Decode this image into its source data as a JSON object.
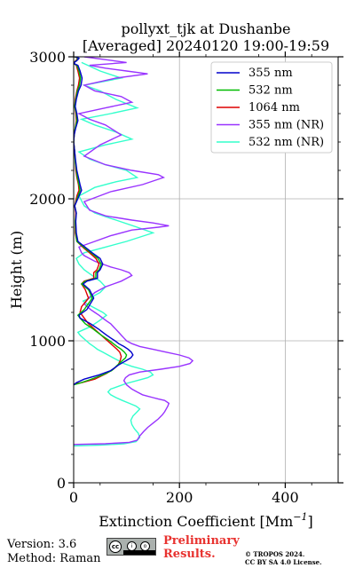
{
  "chart_data": {
    "type": "line",
    "title": [
      "pollyxt_tjk at Dushanbe",
      "[Averaged] 20240120 19:00-19:59"
    ],
    "xlabel": "Extinction Coefficient [Mm",
    "xlabel_sup": "−1",
    "xlabel_close": "]",
    "ylabel": "Height (m)",
    "xlim": [
      0,
      500
    ],
    "ylim": [
      0,
      3000
    ],
    "xticks": [
      0,
      200,
      400
    ],
    "yticks": [
      0,
      1000,
      2000,
      3000
    ],
    "grid": true,
    "legend_position": "top-right",
    "series": [
      {
        "name": "355 nm",
        "color": "#0000cc",
        "x": [
          0,
          5,
          20,
          48,
          70,
          85,
          99,
          108,
          112,
          109,
          103,
          95,
          85,
          78,
          70,
          62,
          55,
          48,
          40,
          32,
          22,
          12,
          10,
          25,
          38,
          30,
          18,
          25,
          45,
          45,
          50,
          55,
          50,
          35,
          25,
          8,
          5,
          4,
          5,
          2,
          10,
          15,
          12,
          9,
          6,
          4,
          2,
          0,
          1,
          4,
          8,
          6,
          3,
          5,
          9,
          14,
          16,
          12,
          8,
          2,
          1,
          5,
          8,
          10,
          4,
          2
        ],
        "y": [
          690,
          705,
          730,
          760,
          790,
          830,
          860,
          880,
          900,
          920,
          940,
          960,
          980,
          1000,
          1020,
          1040,
          1060,
          1080,
          1100,
          1120,
          1140,
          1160,
          1180,
          1220,
          1300,
          1360,
          1400,
          1420,
          1440,
          1480,
          1500,
          1540,
          1580,
          1620,
          1650,
          1700,
          1760,
          1840,
          1900,
          1950,
          2020,
          2060,
          2100,
          2150,
          2200,
          2260,
          2330,
          2400,
          2450,
          2500,
          2550,
          2600,
          2650,
          2700,
          2760,
          2800,
          2850,
          2900,
          2940,
          2950,
          2960,
          2970,
          2980,
          2990,
          3000,
          3000
        ]
      },
      {
        "name": "532 nm",
        "color": "#00bb00",
        "x": [
          0,
          10,
          30,
          55,
          72,
          83,
          92,
          98,
          100,
          96,
          90,
          82,
          75,
          68,
          60,
          52,
          45,
          38,
          30,
          22,
          12,
          8,
          20,
          35,
          28,
          15,
          22,
          42,
          42,
          48,
          52,
          46,
          33,
          22,
          6,
          4,
          3,
          5,
          2,
          8,
          12,
          10,
          7,
          5,
          3,
          2,
          0,
          1,
          3,
          6,
          5,
          2,
          4,
          7,
          11,
          13,
          10,
          6,
          1,
          1,
          4,
          7,
          8,
          3,
          1
        ],
        "y": [
          690,
          700,
          725,
          760,
          790,
          830,
          860,
          880,
          900,
          920,
          940,
          960,
          980,
          1000,
          1020,
          1040,
          1060,
          1080,
          1100,
          1120,
          1160,
          1180,
          1220,
          1300,
          1360,
          1400,
          1420,
          1440,
          1480,
          1500,
          1540,
          1580,
          1620,
          1650,
          1700,
          1760,
          1840,
          1900,
          1950,
          2020,
          2060,
          2100,
          2150,
          2200,
          2260,
          2330,
          2400,
          2450,
          2500,
          2550,
          2600,
          2650,
          2700,
          2760,
          2800,
          2850,
          2900,
          2940,
          2950,
          2960,
          2970,
          2980,
          2990,
          3000,
          3000
        ]
      },
      {
        "name": "1064 nm",
        "color": "#dd0000",
        "x": [
          0,
          15,
          40,
          62,
          75,
          84,
          88,
          90,
          87,
          82,
          76,
          70,
          64,
          58,
          52,
          46,
          40,
          34,
          28,
          20,
          12,
          15,
          28,
          22,
          15,
          20,
          38,
          38,
          44,
          48,
          42,
          30,
          20,
          6,
          3,
          3,
          4,
          2,
          6,
          10,
          9,
          6,
          4,
          3,
          2,
          0,
          1,
          3,
          5,
          4,
          2,
          3,
          6,
          9,
          11,
          8,
          5,
          1,
          1,
          3,
          6,
          7,
          3,
          1
        ],
        "y": [
          695,
          705,
          730,
          770,
          800,
          830,
          860,
          890,
          920,
          940,
          960,
          980,
          1000,
          1020,
          1040,
          1060,
          1080,
          1100,
          1120,
          1160,
          1200,
          1240,
          1300,
          1360,
          1400,
          1420,
          1440,
          1480,
          1500,
          1540,
          1580,
          1620,
          1650,
          1700,
          1760,
          1840,
          1900,
          1950,
          2020,
          2060,
          2100,
          2150,
          2200,
          2260,
          2330,
          2400,
          2450,
          2500,
          2550,
          2600,
          2650,
          2700,
          2760,
          2800,
          2850,
          2900,
          2940,
          2950,
          2960,
          2970,
          2980,
          2990,
          3000,
          3000
        ]
      },
      {
        "name": "355 nm (NR)",
        "color": "#9933ff",
        "x": [
          0,
          60,
          105,
          120,
          125,
          132,
          140,
          150,
          160,
          168,
          172,
          175,
          178,
          180,
          172,
          160,
          150,
          140,
          130,
          120,
          110,
          100,
          95,
          98,
          105,
          125,
          165,
          200,
          220,
          225,
          218,
          200,
          175,
          150,
          125,
          110,
          100,
          95,
          90,
          85,
          80,
          75,
          70,
          62,
          55,
          48,
          40,
          32,
          26,
          20,
          28,
          40,
          50,
          60,
          75,
          90,
          100,
          110,
          105,
          90,
          70,
          55,
          40,
          30,
          20,
          15,
          10,
          40,
          70,
          110,
          160,
          180,
          150,
          110,
          60,
          30,
          20,
          70,
          130,
          170,
          160,
          110,
          60,
          20,
          50,
          90,
          60,
          30,
          10,
          60,
          110,
          90,
          40,
          20,
          80,
          140,
          100,
          60,
          30,
          100,
          60,
          20
        ],
        "y": [
          270,
          275,
          285,
          300,
          330,
          360,
          390,
          420,
          450,
          480,
          500,
          520,
          540,
          560,
          580,
          590,
          600,
          610,
          620,
          640,
          660,
          690,
          720,
          740,
          760,
          780,
          800,
          820,
          840,
          860,
          880,
          900,
          920,
          940,
          960,
          980,
          1000,
          1020,
          1040,
          1060,
          1080,
          1100,
          1120,
          1140,
          1160,
          1180,
          1200,
          1220,
          1240,
          1260,
          1300,
          1340,
          1360,
          1380,
          1400,
          1420,
          1440,
          1460,
          1480,
          1500,
          1520,
          1540,
          1560,
          1580,
          1600,
          1620,
          1660,
          1700,
          1740,
          1780,
          1800,
          1810,
          1830,
          1850,
          1880,
          1920,
          1980,
          2050,
          2100,
          2150,
          2170,
          2200,
          2240,
          2300,
          2380,
          2450,
          2520,
          2560,
          2600,
          2640,
          2680,
          2720,
          2760,
          2800,
          2850,
          2880,
          2900,
          2920,
          2940,
          2960,
          2980,
          3000
        ]
      },
      {
        "name": "532 nm (NR)",
        "color": "#33ffcc",
        "x": [
          0,
          50,
          95,
          118,
          125,
          122,
          115,
          110,
          108,
          112,
          120,
          125,
          118,
          105,
          92,
          80,
          70,
          65,
          70,
          85,
          100,
          120,
          140,
          150,
          145,
          130,
          110,
          95,
          85,
          75,
          65,
          55,
          45,
          38,
          30,
          24,
          18,
          12,
          8,
          20,
          32,
          40,
          48,
          55,
          62,
          55,
          45,
          35,
          25,
          18,
          30,
          50,
          60,
          50,
          35,
          20,
          10,
          5,
          20,
          60,
          100,
          150,
          120,
          80,
          40,
          20,
          10,
          40,
          80,
          120,
          100,
          60,
          30,
          10,
          60,
          110,
          80,
          40,
          15,
          70,
          120,
          80,
          50,
          20,
          90,
          50,
          15
        ],
        "y": [
          260,
          265,
          275,
          290,
          320,
          350,
          380,
          410,
          440,
          470,
          500,
          520,
          540,
          560,
          580,
          600,
          620,
          640,
          660,
          680,
          700,
          720,
          740,
          760,
          780,
          800,
          820,
          840,
          860,
          880,
          900,
          920,
          940,
          960,
          980,
          1000,
          1020,
          1040,
          1060,
          1080,
          1100,
          1120,
          1140,
          1160,
          1180,
          1200,
          1220,
          1240,
          1260,
          1280,
          1300,
          1340,
          1380,
          1420,
          1460,
          1500,
          1540,
          1580,
          1620,
          1660,
          1700,
          1760,
          1800,
          1850,
          1900,
          1950,
          2020,
          2080,
          2120,
          2150,
          2200,
          2240,
          2280,
          2330,
          2380,
          2420,
          2470,
          2520,
          2560,
          2600,
          2640,
          2700,
          2760,
          2800,
          2850,
          2900,
          2960
        ]
      }
    ]
  },
  "footer": {
    "version": "Version: 3.6",
    "method": "Method: Raman",
    "preliminary_line1": "Preliminary",
    "preliminary_line2": "Results.",
    "copyright_line1": "© TROPOS 2024.",
    "copyright_line2": "CC BY SA 4.0 License."
  },
  "colors": {
    "preliminary": "#e8322f"
  },
  "icons": {
    "license_badge": "cc-by-sa-badge"
  }
}
